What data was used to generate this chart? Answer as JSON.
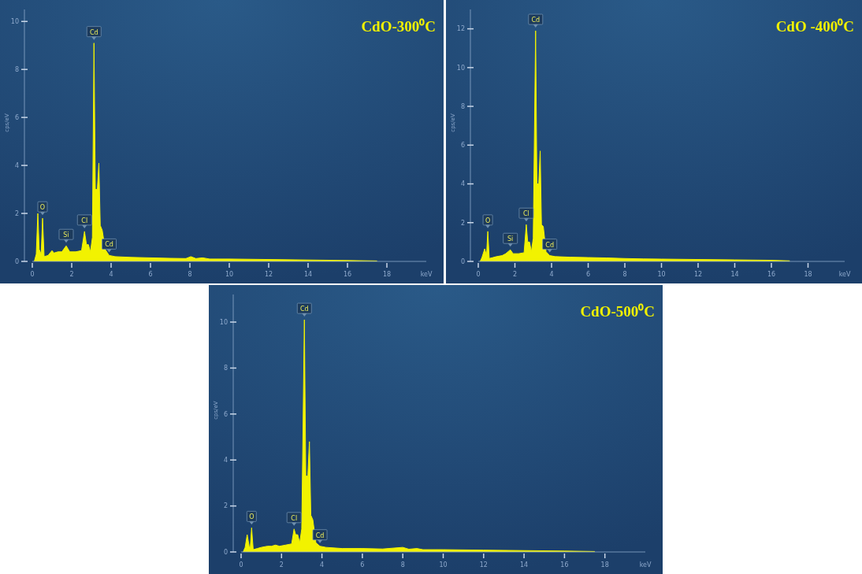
{
  "chart_data": [
    {
      "type": "area",
      "title": "CdO-300⁰C",
      "xlabel": "keV",
      "ylabel": "cps/eV",
      "xlim": [
        0,
        20
      ],
      "ylim": [
        0,
        10.5
      ],
      "xticks": [
        0,
        2,
        4,
        6,
        8,
        10,
        12,
        14,
        16,
        18
      ],
      "yticks": [
        0,
        2,
        4,
        6,
        8,
        10
      ],
      "series": [
        {
          "color": "#f2f200",
          "x": [
            0.1,
            0.2,
            0.28,
            0.35,
            0.45,
            0.52,
            0.6,
            0.8,
            1.0,
            1.1,
            1.3,
            1.5,
            1.72,
            1.9,
            2.2,
            2.5,
            2.65,
            2.75,
            2.85,
            2.95,
            3.05,
            3.13,
            3.2,
            3.3,
            3.38,
            3.45,
            3.55,
            3.7,
            3.9,
            4.2,
            5,
            6,
            7,
            7.8,
            8.05,
            8.3,
            8.65,
            9,
            10,
            12,
            14,
            16,
            17.5
          ],
          "values": [
            0,
            0.3,
            2.0,
            0.5,
            0.3,
            1.8,
            0.2,
            0.25,
            0.45,
            0.35,
            0.4,
            0.4,
            0.65,
            0.4,
            0.4,
            0.45,
            1.25,
            0.7,
            0.7,
            0.4,
            1.0,
            9.1,
            3.0,
            3.0,
            4.1,
            1.5,
            1.3,
            0.5,
            0.25,
            0.2,
            0.17,
            0.15,
            0.13,
            0.12,
            0.2,
            0.12,
            0.15,
            0.1,
            0.1,
            0.08,
            0.06,
            0.04,
            0.02
          ]
        }
      ],
      "annotations": [
        {
          "text": "O",
          "x": 0.52,
          "y": 1.8
        },
        {
          "text": "Si",
          "x": 1.72,
          "y": 0.65
        },
        {
          "text": "Cl",
          "x": 2.65,
          "y": 1.25
        },
        {
          "text": "Cd",
          "x": 3.13,
          "y": 9.1
        },
        {
          "text": "Cd",
          "x": 3.9,
          "y": 0.25
        }
      ]
    },
    {
      "type": "area",
      "title": "CdO -400⁰C",
      "xlabel": "keV",
      "ylabel": "cps/eV",
      "xlim": [
        0,
        20
      ],
      "ylim": [
        0,
        13
      ],
      "xticks": [
        0,
        2,
        4,
        6,
        8,
        10,
        12,
        14,
        16,
        18
      ],
      "yticks": [
        0,
        2,
        4,
        6,
        8,
        10,
        12
      ],
      "series": [
        {
          "color": "#f2f200",
          "x": [
            0.1,
            0.2,
            0.35,
            0.45,
            0.52,
            0.6,
            0.8,
            1.0,
            1.3,
            1.5,
            1.75,
            1.9,
            2.2,
            2.5,
            2.62,
            2.7,
            2.8,
            2.9,
            3.0,
            3.13,
            3.2,
            3.3,
            3.38,
            3.45,
            3.55,
            3.7,
            3.9,
            4.2,
            5,
            6,
            7,
            8,
            9,
            10,
            12,
            14,
            16,
            17
          ],
          "values": [
            0,
            0.2,
            0.65,
            0.3,
            1.55,
            0.15,
            0.2,
            0.25,
            0.3,
            0.4,
            0.6,
            0.4,
            0.4,
            0.45,
            1.9,
            1.0,
            1.0,
            0.5,
            1.2,
            11.9,
            4.0,
            4.0,
            5.7,
            1.9,
            1.8,
            0.5,
            0.3,
            0.25,
            0.22,
            0.2,
            0.18,
            0.15,
            0.13,
            0.12,
            0.1,
            0.08,
            0.06,
            0.03
          ]
        }
      ],
      "annotations": [
        {
          "text": "O",
          "x": 0.52,
          "y": 1.55
        },
        {
          "text": "Si",
          "x": 1.75,
          "y": 0.6
        },
        {
          "text": "Cl",
          "x": 2.62,
          "y": 1.9
        },
        {
          "text": "Cd",
          "x": 3.13,
          "y": 11.9
        },
        {
          "text": "Cd",
          "x": 3.9,
          "y": 0.3
        }
      ]
    },
    {
      "type": "area",
      "title": "CdO-500⁰C",
      "xlabel": "keV",
      "ylabel": "cps/eV",
      "xlim": [
        0,
        20
      ],
      "ylim": [
        0,
        11.2
      ],
      "xticks": [
        0,
        2,
        4,
        6,
        8,
        10,
        12,
        14,
        16,
        18
      ],
      "yticks": [
        0,
        2,
        4,
        6,
        8,
        10
      ],
      "series": [
        {
          "color": "#f2f200",
          "x": [
            0.1,
            0.2,
            0.3,
            0.4,
            0.45,
            0.52,
            0.6,
            0.8,
            1.0,
            1.3,
            1.5,
            1.7,
            1.9,
            2.2,
            2.5,
            2.62,
            2.7,
            2.8,
            2.9,
            3.0,
            3.13,
            3.2,
            3.3,
            3.38,
            3.45,
            3.55,
            3.7,
            3.9,
            4.2,
            5,
            6,
            7,
            8,
            8.3,
            8.7,
            9,
            10,
            12,
            14,
            16,
            17.5
          ],
          "values": [
            0,
            0.2,
            0.75,
            0.25,
            0.15,
            1.05,
            0.1,
            0.15,
            0.2,
            0.25,
            0.25,
            0.3,
            0.25,
            0.3,
            0.35,
            1.0,
            0.75,
            0.75,
            0.4,
            1.0,
            10.1,
            3.3,
            3.3,
            4.8,
            1.6,
            1.4,
            0.4,
            0.25,
            0.2,
            0.15,
            0.15,
            0.13,
            0.2,
            0.12,
            0.15,
            0.1,
            0.1,
            0.08,
            0.06,
            0.04,
            0.02
          ]
        }
      ],
      "annotations": [
        {
          "text": "O",
          "x": 0.52,
          "y": 1.05
        },
        {
          "text": "Cl",
          "x": 2.62,
          "y": 1.0
        },
        {
          "text": "Cd",
          "x": 3.13,
          "y": 10.1
        },
        {
          "text": "Cd",
          "x": 3.9,
          "y": 0.25
        }
      ]
    }
  ]
}
